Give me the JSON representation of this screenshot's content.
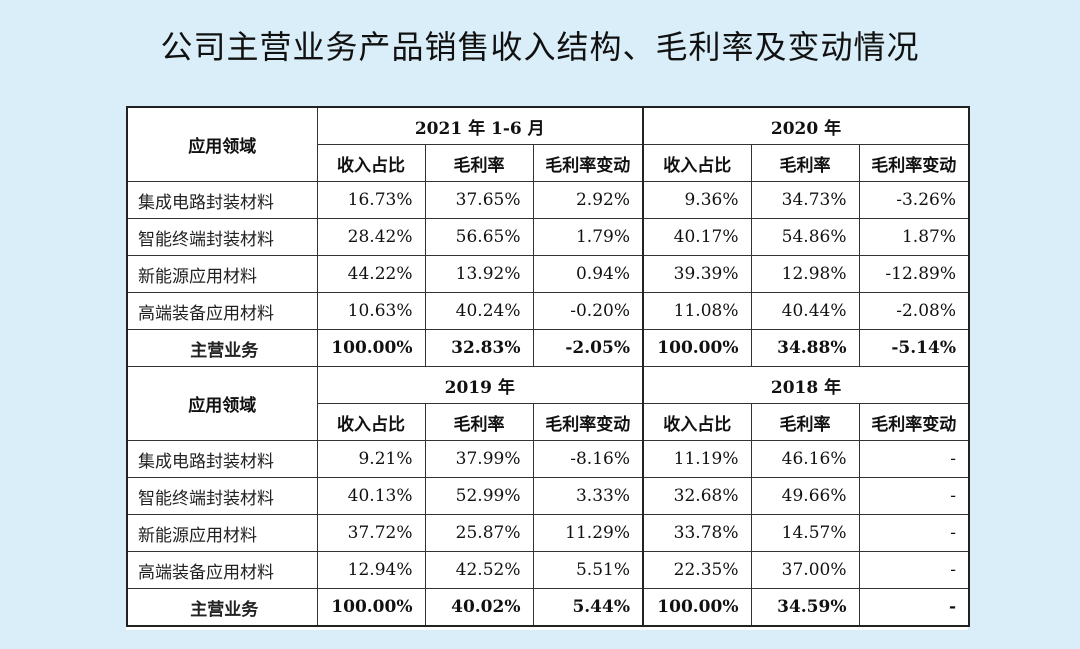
{
  "title": "公司主营业务产品销售收入结构、毛利率及变动情况",
  "sections": [
    {
      "field_header": "应用领域",
      "periods": [
        "2021 年 1-6 月",
        "2020 年"
      ],
      "sub_headers": [
        "收入占比",
        "毛利率",
        "毛利率变动",
        "收入占比",
        "毛利率",
        "毛利率变动"
      ],
      "rows": [
        {
          "label": "集成电路封装材料",
          "values": [
            "16.73%",
            "37.65%",
            "2.92%",
            "9.36%",
            "34.73%",
            "-3.26%"
          ]
        },
        {
          "label": "智能终端封装材料",
          "values": [
            "28.42%",
            "56.65%",
            "1.79%",
            "40.17%",
            "54.86%",
            "1.87%"
          ]
        },
        {
          "label": "新能源应用材料",
          "values": [
            "44.22%",
            "13.92%",
            "0.94%",
            "39.39%",
            "12.98%",
            "-12.89%"
          ]
        },
        {
          "label": "高端装备应用材料",
          "values": [
            "10.63%",
            "40.24%",
            "-0.20%",
            "11.08%",
            "40.44%",
            "-2.08%"
          ]
        }
      ],
      "total": {
        "label": "主营业务",
        "values": [
          "100.00%",
          "32.83%",
          "-2.05%",
          "100.00%",
          "34.88%",
          "-5.14%"
        ]
      }
    },
    {
      "field_header": "应用领域",
      "periods": [
        "2019 年",
        "2018 年"
      ],
      "sub_headers": [
        "收入占比",
        "毛利率",
        "毛利率变动",
        "收入占比",
        "毛利率",
        "毛利率变动"
      ],
      "rows": [
        {
          "label": "集成电路封装材料",
          "values": [
            "9.21%",
            "37.99%",
            "-8.16%",
            "11.19%",
            "46.16%",
            "-"
          ]
        },
        {
          "label": "智能终端封装材料",
          "values": [
            "40.13%",
            "52.99%",
            "3.33%",
            "32.68%",
            "49.66%",
            "-"
          ]
        },
        {
          "label": "新能源应用材料",
          "values": [
            "37.72%",
            "25.87%",
            "11.29%",
            "33.78%",
            "14.57%",
            "-"
          ]
        },
        {
          "label": "高端装备应用材料",
          "values": [
            "12.94%",
            "42.52%",
            "5.51%",
            "22.35%",
            "37.00%",
            "-"
          ]
        }
      ],
      "total": {
        "label": "主营业务",
        "values": [
          "100.00%",
          "40.02%",
          "5.44%",
          "100.00%",
          "34.59%",
          "-"
        ]
      }
    }
  ]
}
